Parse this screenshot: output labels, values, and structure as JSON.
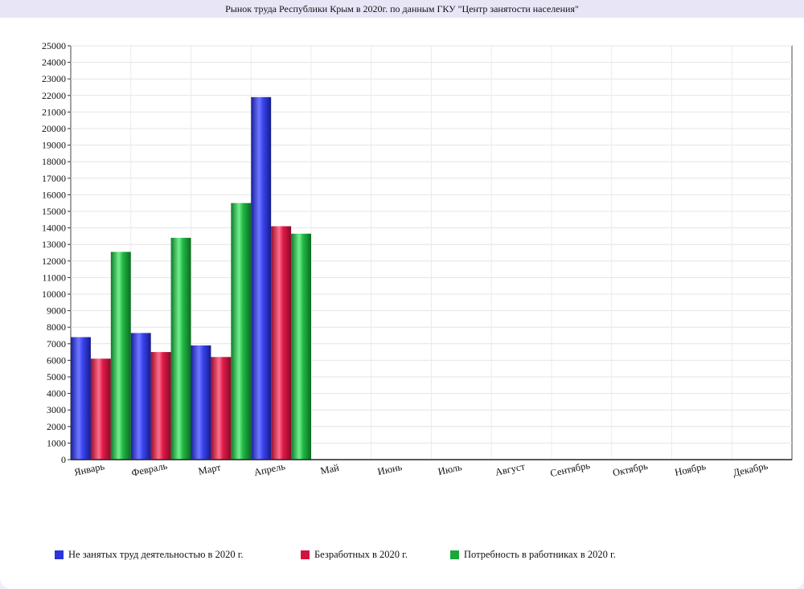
{
  "title": "Рынок труда Республики Крым в 2020г. по данным ГКУ \"Центр занятости населения\"",
  "chart_data": {
    "type": "bar",
    "title": "Рынок труда Республики Крым в 2020г. по данным ГКУ \"Центр занятости населения\"",
    "xlabel": "",
    "ylabel": "",
    "ylim": [
      0,
      25000
    ],
    "ytick_step": 1000,
    "grid": true,
    "legend_position": "bottom",
    "categories": [
      "Январь",
      "Февраль",
      "Март",
      "Апрель",
      "Май",
      "Июнь",
      "Июль",
      "Август",
      "Сентябрь",
      "Октябрь",
      "Ноябрь",
      "Декабрь"
    ],
    "series": [
      {
        "name": "Не занятых труд деятельностью  в 2020 г.",
        "color": "#2b35d9",
        "values": [
          7400,
          7650,
          6900,
          21900,
          null,
          null,
          null,
          null,
          null,
          null,
          null,
          null
        ]
      },
      {
        "name": "Безработных в 2020 г.",
        "color": "#d4123f",
        "values": [
          6100,
          6500,
          6200,
          14100,
          null,
          null,
          null,
          null,
          null,
          null,
          null,
          null
        ]
      },
      {
        "name": "Потребность в работниках в 2020 г.",
        "color": "#1aa83a",
        "values": [
          12550,
          13400,
          15500,
          13650,
          null,
          null,
          null,
          null,
          null,
          null,
          null,
          null
        ]
      }
    ]
  }
}
